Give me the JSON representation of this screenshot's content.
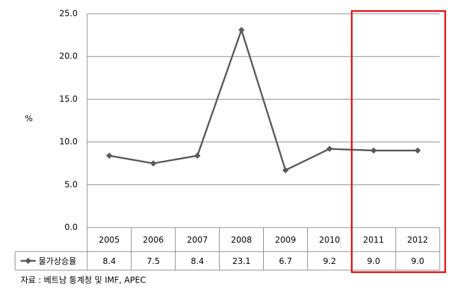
{
  "chart_data": {
    "type": "line",
    "y_label": "%",
    "categories": [
      "2005",
      "2006",
      "2007",
      "2008",
      "2009",
      "2010",
      "2011",
      "2012"
    ],
    "series": [
      {
        "name": "물가상승율",
        "color": "#595959",
        "values": [
          8.4,
          7.5,
          8.4,
          23.1,
          6.7,
          9.2,
          9.0,
          9.0
        ],
        "value_labels": [
          "8.4",
          "7.5",
          "8.4",
          "23.1",
          "6.7",
          "9.2",
          "9.0",
          "9.0"
        ]
      }
    ],
    "ylim": [
      0,
      25
    ],
    "yticks": [
      {
        "value": 0,
        "label": "0.0"
      },
      {
        "value": 5,
        "label": "5.0"
      },
      {
        "value": 10,
        "label": "10.0"
      },
      {
        "value": 15,
        "label": "15.0"
      },
      {
        "value": 20,
        "label": "20.0"
      },
      {
        "value": 25,
        "label": "25.0"
      }
    ],
    "grid": true,
    "source": "자료 : 베트남 통계청 및 IMF, APEC"
  }
}
